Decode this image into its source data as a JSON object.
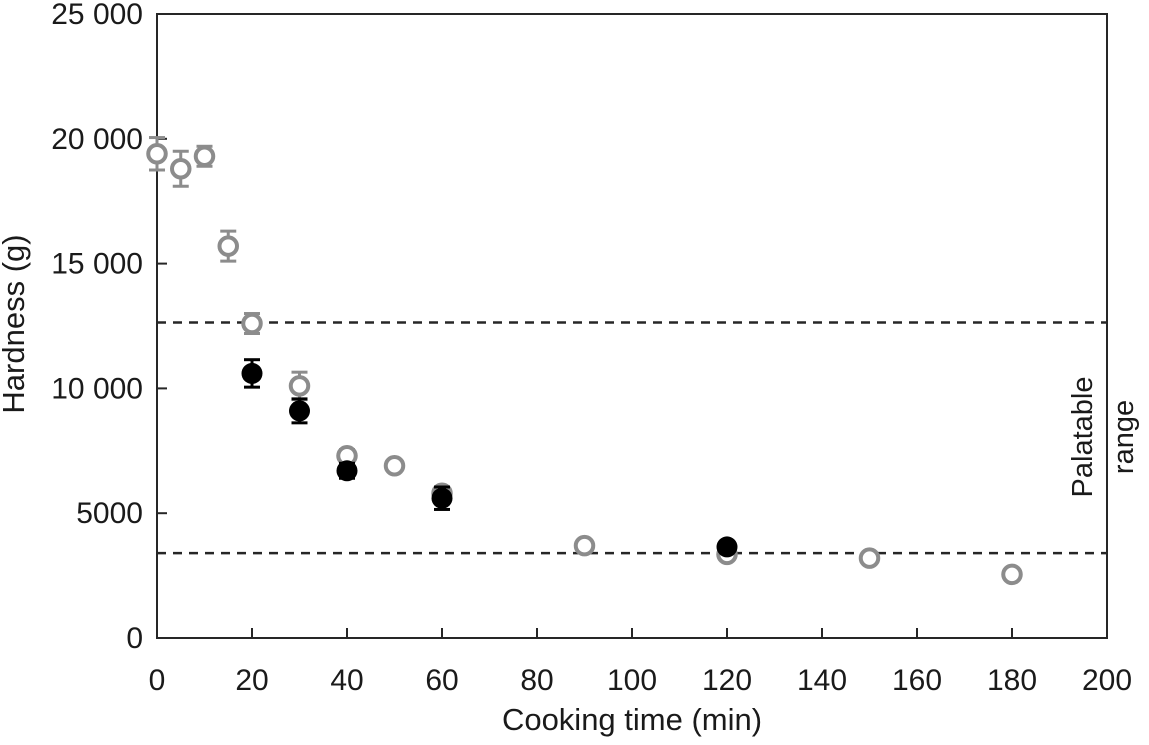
{
  "figure": {
    "background": "#ffffff",
    "frame_color": "#262626",
    "text_color": "#1a1a1a"
  },
  "chart_data": {
    "type": "scatter",
    "title": "",
    "xlabel": "Cooking time (min)",
    "ylabel": "Hardness (g)",
    "xlim": [
      0,
      200
    ],
    "ylim": [
      0,
      25000
    ],
    "grid": false,
    "legend": "none",
    "x_ticks": [
      {
        "value": 0,
        "label": "0"
      },
      {
        "value": 20,
        "label": "20"
      },
      {
        "value": 40,
        "label": "40"
      },
      {
        "value": 60,
        "label": "60"
      },
      {
        "value": 80,
        "label": "80"
      },
      {
        "value": 100,
        "label": "100"
      },
      {
        "value": 120,
        "label": "120"
      },
      {
        "value": 140,
        "label": "140"
      },
      {
        "value": 160,
        "label": "160"
      },
      {
        "value": 180,
        "label": "180"
      },
      {
        "value": 200,
        "label": "200"
      }
    ],
    "y_ticks": [
      {
        "value": 0,
        "label": "0"
      },
      {
        "value": 5000,
        "label": "5000"
      },
      {
        "value": 10000,
        "label": "10 000"
      },
      {
        "value": 15000,
        "label": "15 000"
      },
      {
        "value": 20000,
        "label": "20 000"
      },
      {
        "value": 25000,
        "label": "25 000"
      }
    ],
    "reference_lines": [
      {
        "name": "palatable-upper-line",
        "y": 12640,
        "style": "dashed",
        "color": "#262626"
      },
      {
        "name": "palatable-lower-line",
        "y": 3400,
        "style": "dashed",
        "color": "#262626"
      }
    ],
    "annotation_lines": [
      "Palatable",
      "range"
    ],
    "series": [
      {
        "name": "open-circles",
        "marker": "open-circle",
        "color": "#8C8C8C",
        "points": [
          {
            "x": 0,
            "y": 19400,
            "e": 650
          },
          {
            "x": 5,
            "y": 18800,
            "e": 700
          },
          {
            "x": 10,
            "y": 19300,
            "e": 400
          },
          {
            "x": 15,
            "y": 15700,
            "e": 600
          },
          {
            "x": 20,
            "y": 12600,
            "e": 400
          },
          {
            "x": 30,
            "y": 10100,
            "e": 550
          },
          {
            "x": 40,
            "y": 7300,
            "e": 250
          },
          {
            "x": 50,
            "y": 6900,
            "e": 150
          },
          {
            "x": 60,
            "y": 5800,
            "e": 250
          },
          {
            "x": 90,
            "y": 3700,
            "e": 100
          },
          {
            "x": 120,
            "y": 3350,
            "e": 150
          },
          {
            "x": 150,
            "y": 3200,
            "e": 100
          },
          {
            "x": 180,
            "y": 2550,
            "e": 100
          }
        ]
      },
      {
        "name": "filled-circles",
        "marker": "filled-circle",
        "color": "#000000",
        "points": [
          {
            "x": 20,
            "y": 10600,
            "e": 550
          },
          {
            "x": 30,
            "y": 9100,
            "e": 480
          },
          {
            "x": 40,
            "y": 6700,
            "e": 300
          },
          {
            "x": 60,
            "y": 5600,
            "e": 450
          },
          {
            "x": 120,
            "y": 3650,
            "e": 100
          }
        ]
      }
    ]
  }
}
